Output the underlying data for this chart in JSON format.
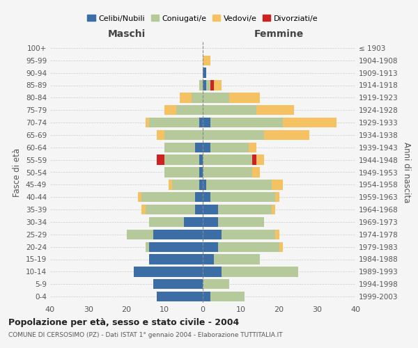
{
  "age_groups": [
    "100+",
    "95-99",
    "90-94",
    "85-89",
    "80-84",
    "75-79",
    "70-74",
    "65-69",
    "60-64",
    "55-59",
    "50-54",
    "45-49",
    "40-44",
    "35-39",
    "30-34",
    "25-29",
    "20-24",
    "15-19",
    "10-14",
    "5-9",
    "0-4"
  ],
  "birth_years": [
    "≤ 1903",
    "1904-1908",
    "1909-1913",
    "1914-1918",
    "1919-1923",
    "1924-1928",
    "1929-1933",
    "1934-1938",
    "1939-1943",
    "1944-1948",
    "1949-1953",
    "1954-1958",
    "1959-1963",
    "1964-1968",
    "1969-1973",
    "1974-1978",
    "1979-1983",
    "1984-1988",
    "1989-1993",
    "1994-1998",
    "1999-2003"
  ],
  "colors": {
    "celibi": "#3c6ea5",
    "coniugati": "#b5c99a",
    "vedovi": "#f4c262",
    "divorziati": "#cc2222"
  },
  "maschi": {
    "celibi": [
      0,
      0,
      0,
      0,
      0,
      0,
      1,
      0,
      2,
      1,
      1,
      1,
      2,
      2,
      5,
      13,
      14,
      14,
      18,
      13,
      12
    ],
    "coniugati": [
      0,
      0,
      0,
      1,
      3,
      7,
      13,
      10,
      8,
      9,
      9,
      7,
      14,
      13,
      9,
      7,
      1,
      0,
      0,
      0,
      0
    ],
    "vedovi": [
      0,
      0,
      0,
      0,
      3,
      3,
      1,
      2,
      0,
      0,
      0,
      1,
      1,
      1,
      0,
      0,
      0,
      0,
      0,
      0,
      0
    ],
    "divorziati": [
      0,
      0,
      0,
      0,
      0,
      0,
      0,
      0,
      0,
      2,
      0,
      0,
      0,
      0,
      0,
      0,
      0,
      0,
      0,
      0,
      0
    ]
  },
  "femmine": {
    "celibi": [
      0,
      0,
      1,
      1,
      0,
      0,
      2,
      0,
      2,
      0,
      0,
      1,
      2,
      4,
      4,
      5,
      4,
      3,
      5,
      0,
      2
    ],
    "coniugati": [
      0,
      0,
      0,
      1,
      7,
      14,
      19,
      16,
      10,
      13,
      13,
      17,
      17,
      14,
      12,
      14,
      16,
      12,
      20,
      7,
      9
    ],
    "vedovi": [
      0,
      2,
      0,
      2,
      8,
      10,
      14,
      12,
      2,
      2,
      2,
      3,
      1,
      1,
      0,
      1,
      1,
      0,
      0,
      0,
      0
    ],
    "divorziati": [
      0,
      0,
      0,
      1,
      0,
      0,
      0,
      0,
      0,
      1,
      0,
      0,
      0,
      0,
      0,
      0,
      0,
      0,
      0,
      0,
      0
    ]
  },
  "xlim": 40,
  "title": "Popolazione per età, sesso e stato civile - 2004",
  "subtitle": "COMUNE DI CERSOSIMO (PZ) - Dati ISTAT 1° gennaio 2004 - Elaborazione TUTTITALIA.IT",
  "ylabel_left": "Fasce di età",
  "ylabel_right": "Anni di nascita",
  "label_maschi": "Maschi",
  "label_femmine": "Femmine",
  "legend_labels": [
    "Celibi/Nubili",
    "Coniugati/e",
    "Vedovi/e",
    "Divorziati/e"
  ],
  "bg_color": "#f5f5f5",
  "bar_height": 0.8
}
